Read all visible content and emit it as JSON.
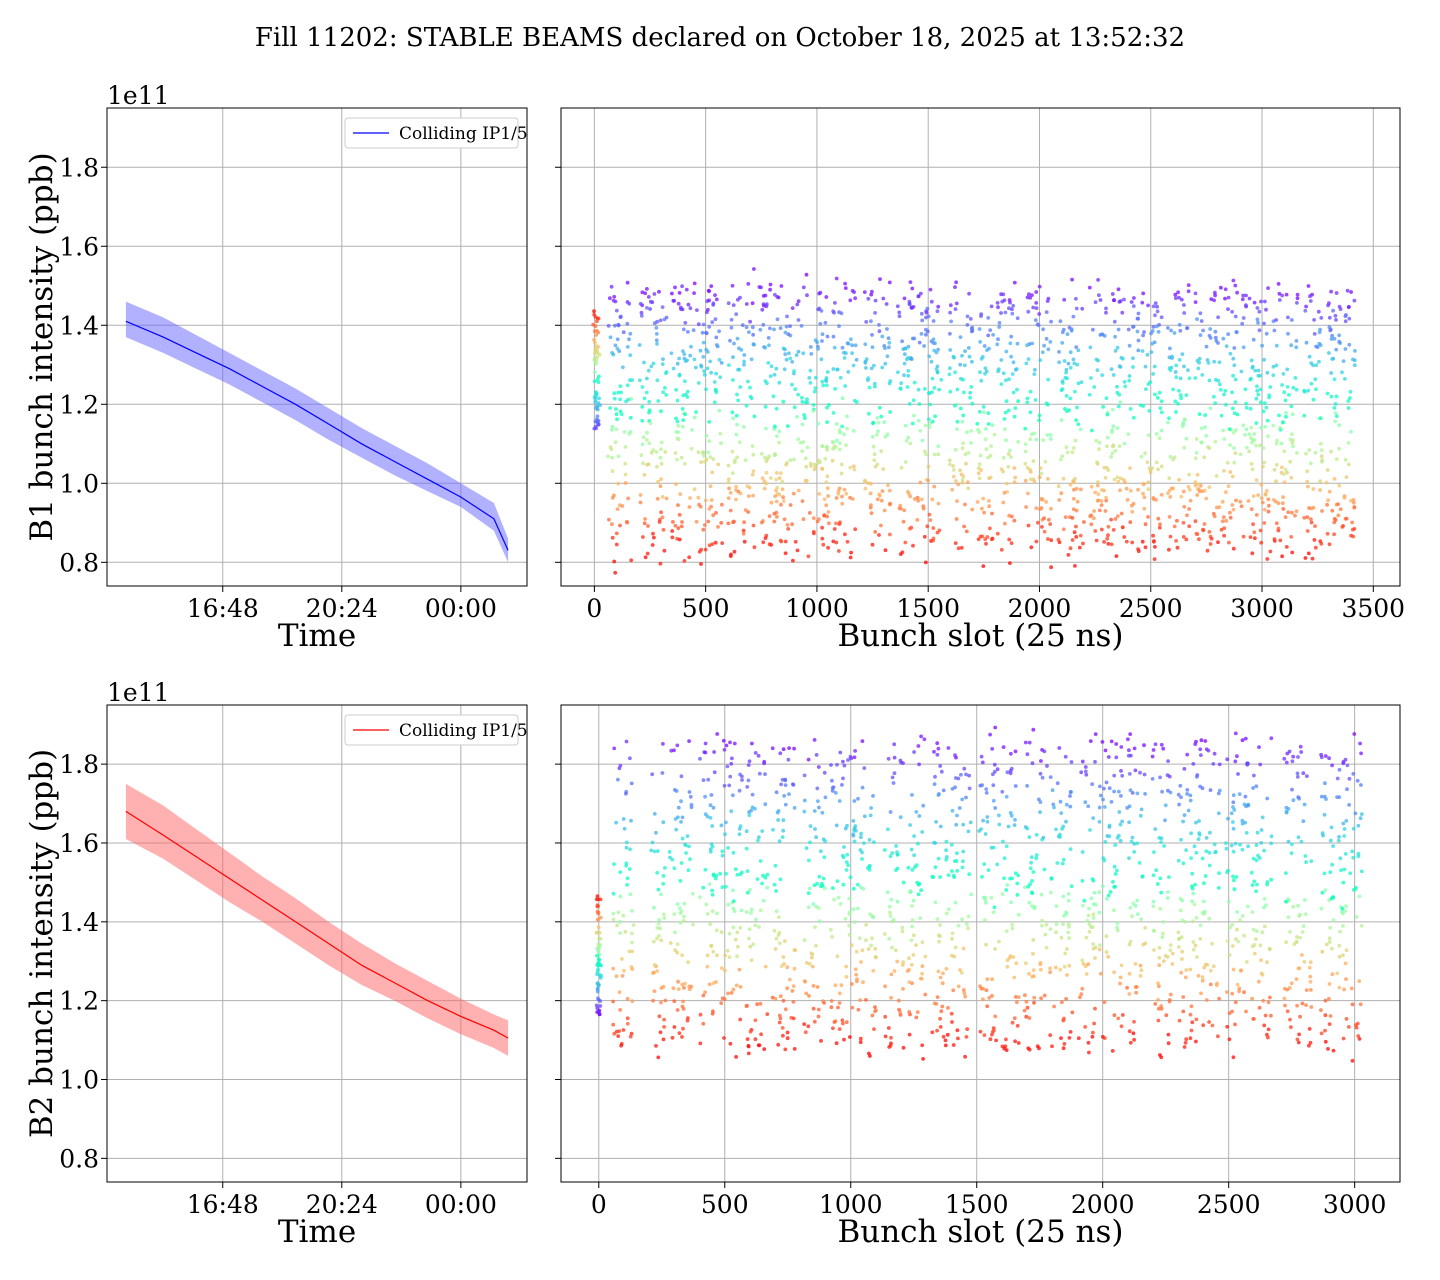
{
  "figure": {
    "title": "Fill 11202: STABLE BEAMS declared on October 18, 2025 at 13:52:32"
  },
  "chart_data": [
    {
      "id": "b1-time",
      "type": "line",
      "ylabel": "B1 bunch intensity (ppb)",
      "xlabel": "Time",
      "y_offset_label": "1e11",
      "ylim": [
        0.74,
        1.95
      ],
      "yticks": [
        0.8,
        1.0,
        1.2,
        1.4,
        1.6,
        1.8
      ],
      "ytick_labels": [
        "0.8",
        "1.0",
        "1.2",
        "1.4",
        "1.6",
        "1.8"
      ],
      "xlim": [
        13.3,
        26.0
      ],
      "xticks": [
        16.8,
        20.4,
        24.0
      ],
      "xtick_labels": [
        "16:48",
        "20:24",
        "00:00"
      ],
      "grid": true,
      "legend": "top-right",
      "color": "#0000ff",
      "fill_color": "#6464ff",
      "series": [
        {
          "name": "Colliding IP1/5",
          "x": [
            13.87,
            15.0,
            16.0,
            17.0,
            18.0,
            19.0,
            20.0,
            21.0,
            22.0,
            23.0,
            24.0,
            25.0,
            25.43
          ],
          "y": [
            1.41,
            1.37,
            1.33,
            1.29,
            1.245,
            1.2,
            1.15,
            1.1,
            1.055,
            1.01,
            0.965,
            0.91,
            0.83
          ],
          "y_low": [
            1.37,
            1.33,
            1.29,
            1.25,
            1.205,
            1.16,
            1.11,
            1.065,
            1.02,
            0.98,
            0.94,
            0.88,
            0.8
          ],
          "y_high": [
            1.46,
            1.42,
            1.375,
            1.33,
            1.285,
            1.24,
            1.19,
            1.14,
            1.095,
            1.05,
            1.0,
            0.95,
            0.86
          ]
        }
      ]
    },
    {
      "id": "b1-slot",
      "type": "scatter",
      "xlabel": "Bunch slot (25 ns)",
      "xlim": [
        -150,
        3620
      ],
      "xticks": [
        0,
        500,
        1000,
        1500,
        2000,
        2500,
        3000,
        3500
      ],
      "xtick_labels": [
        "0",
        "500",
        "1000",
        "1500",
        "2000",
        "2500",
        "3000",
        "3500"
      ],
      "ylim": [
        0.74,
        1.95
      ],
      "grid": true,
      "colormap": "rainbow",
      "value_range": [
        0.82,
        1.5
      ],
      "pilot_slot": 10,
      "pilot_range": [
        1.11,
        1.44
      ],
      "trains": [
        [
          60,
          170
        ],
        [
          200,
          325
        ],
        [
          345,
          440
        ],
        [
          445,
          575
        ],
        [
          600,
          720
        ],
        [
          740,
          800
        ],
        [
          805,
          910
        ],
        [
          910,
          1055
        ],
        [
          1070,
          1180
        ],
        [
          1215,
          1330
        ],
        [
          1360,
          1440
        ],
        [
          1450,
          1560
        ],
        [
          1595,
          1700
        ],
        [
          1720,
          1800
        ],
        [
          1810,
          1905
        ],
        [
          1935,
          2055
        ],
        [
          2085,
          2200
        ],
        [
          2225,
          2310
        ],
        [
          2320,
          2425
        ],
        [
          2440,
          2550
        ],
        [
          2575,
          2680
        ],
        [
          2700,
          2780
        ],
        [
          2780,
          2890
        ],
        [
          2900,
          3040
        ],
        [
          3050,
          3160
        ],
        [
          3185,
          3270
        ],
        [
          3290,
          3420
        ]
      ]
    },
    {
      "id": "b2-time",
      "type": "line",
      "ylabel": "B2 bunch intensity (ppb)",
      "xlabel": "Time",
      "y_offset_label": "1e11",
      "ylim": [
        0.74,
        1.95
      ],
      "yticks": [
        0.8,
        1.0,
        1.2,
        1.4,
        1.6,
        1.8
      ],
      "ytick_labels": [
        "0.8",
        "1.0",
        "1.2",
        "1.4",
        "1.6",
        "1.8"
      ],
      "xlim": [
        13.3,
        26.0
      ],
      "xticks": [
        16.8,
        20.4,
        24.0
      ],
      "xtick_labels": [
        "16:48",
        "20:24",
        "00:00"
      ],
      "grid": true,
      "legend": "top-right",
      "color": "#ff0000",
      "fill_color": "#ff6464",
      "series": [
        {
          "name": "Colliding IP1/5",
          "x": [
            13.87,
            15.0,
            16.0,
            17.0,
            18.0,
            19.0,
            20.0,
            21.0,
            22.0,
            23.0,
            24.0,
            25.0,
            25.43
          ],
          "y": [
            1.68,
            1.62,
            1.565,
            1.51,
            1.455,
            1.4,
            1.345,
            1.29,
            1.245,
            1.2,
            1.16,
            1.125,
            1.105
          ],
          "y_low": [
            1.61,
            1.56,
            1.505,
            1.45,
            1.4,
            1.345,
            1.29,
            1.24,
            1.2,
            1.155,
            1.115,
            1.08,
            1.06
          ],
          "y_high": [
            1.75,
            1.695,
            1.635,
            1.575,
            1.515,
            1.46,
            1.4,
            1.345,
            1.295,
            1.25,
            1.205,
            1.165,
            1.15
          ]
        }
      ]
    },
    {
      "id": "b2-slot",
      "type": "scatter",
      "xlabel": "Bunch slot (25 ns)",
      "xlim": [
        -150,
        3180
      ],
      "xticks": [
        0,
        500,
        1000,
        1500,
        2000,
        2500,
        3000
      ],
      "xtick_labels": [
        "0",
        "500",
        "1000",
        "1500",
        "2000",
        "2500",
        "3000"
      ],
      "ylim": [
        0.74,
        1.95
      ],
      "grid": true,
      "colormap": "rainbow",
      "value_range": [
        1.08,
        1.86
      ],
      "pilot_slot": 0,
      "pilot_range": [
        1.16,
        1.47
      ],
      "trains": [
        [
          55,
          140
        ],
        [
          205,
          265
        ],
        [
          280,
          375
        ],
        [
          400,
          470
        ],
        [
          480,
          570
        ],
        [
          585,
          670
        ],
        [
          690,
          780
        ],
        [
          815,
          900
        ],
        [
          920,
          1000
        ],
        [
          1000,
          1100
        ],
        [
          1135,
          1210
        ],
        [
          1225,
          1300
        ],
        [
          1320,
          1390
        ],
        [
          1400,
          1480
        ],
        [
          1510,
          1590
        ],
        [
          1600,
          1670
        ],
        [
          1690,
          1780
        ],
        [
          1790,
          1880
        ],
        [
          1905,
          1975
        ],
        [
          1985,
          2080
        ],
        [
          2095,
          2170
        ],
        [
          2195,
          2280
        ],
        [
          2295,
          2350
        ],
        [
          2350,
          2465
        ],
        [
          2480,
          2580
        ],
        [
          2590,
          2670
        ],
        [
          2720,
          2830
        ],
        [
          2860,
          2920
        ],
        [
          2930,
          3030
        ]
      ]
    }
  ]
}
